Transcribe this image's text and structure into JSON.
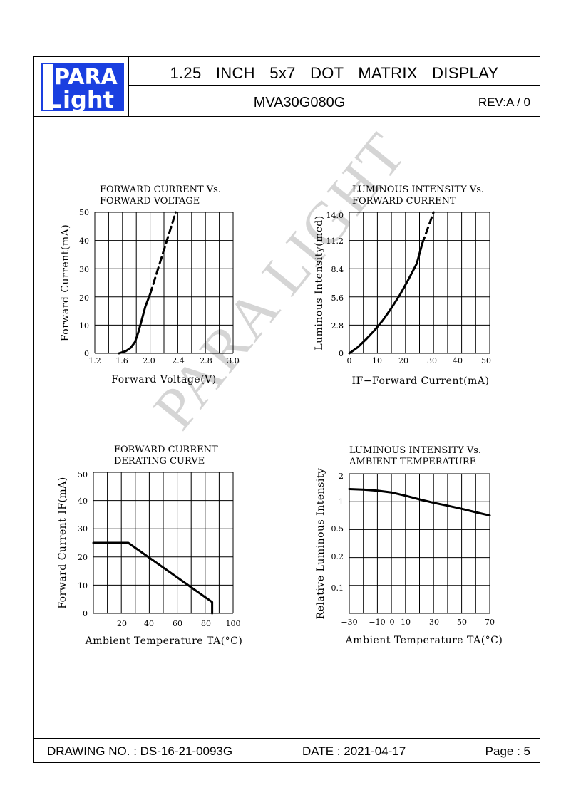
{
  "header": {
    "logo_top": "PARA",
    "logo_bottom": "ight",
    "logo_letter": "L",
    "title": "1.25 INCH 5x7 DOT MATRIX DISPLAY",
    "part_number": "MVA30G080G",
    "revision": "REV:A / 0"
  },
  "footer": {
    "drawing_no": "DRAWING NO. : DS-16-21-0093G",
    "date": "DATE : 2021-04-17",
    "page": "Page : 5"
  },
  "watermark": "PARA LIGHT",
  "colors": {
    "logo_blue": "#1a3fe0",
    "ink": "#000000"
  },
  "chart_data": [
    {
      "type": "line",
      "title": [
        "FORWARD CURRENT Vs.",
        "FORWARD VOLTAGE"
      ],
      "xlabel": "Forward Voltage(V)",
      "ylabel": "Forward Current(mA)",
      "xticks": [
        "1.2",
        "1.6",
        "2.0",
        "2.4",
        "2.8",
        "3.0"
      ],
      "yticks": [
        "0",
        "10",
        "20",
        "30",
        "40",
        "50"
      ],
      "xlim": [
        1.2,
        3.2
      ],
      "ylim": [
        0,
        50
      ],
      "grid": true,
      "series": [
        {
          "style": "solid",
          "x": [
            1.55,
            1.65,
            1.72,
            1.78,
            1.83,
            1.88,
            1.93,
            2.0
          ],
          "y": [
            0,
            0.8,
            2,
            4,
            7.5,
            12,
            16.5,
            21
          ]
        },
        {
          "style": "dashed",
          "x": [
            2.0,
            2.37
          ],
          "y": [
            21,
            50
          ]
        }
      ]
    },
    {
      "type": "line",
      "title": [
        "LUMINOUS INTENSITY Vs.",
        "FORWARD CURRENT"
      ],
      "xlabel": "IF−Forward Current(mA)",
      "ylabel": "Luminous Intensity(mcd)",
      "xticks": [
        "0",
        "10",
        "20",
        "30",
        "40",
        "50"
      ],
      "yticks": [
        "0",
        "2.8",
        "5.6",
        "8.4",
        "11.2",
        "14.0"
      ],
      "xlim": [
        0,
        50
      ],
      "ylim": [
        0,
        14
      ],
      "grid": true,
      "series": [
        {
          "style": "solid",
          "x": [
            0,
            3,
            6,
            9,
            12,
            15,
            18,
            21,
            24,
            26
          ],
          "y": [
            0,
            0.6,
            1.4,
            2.3,
            3.3,
            4.5,
            5.8,
            7.3,
            8.9,
            10.9
          ]
        },
        {
          "style": "dashed",
          "x": [
            26,
            30
          ],
          "y": [
            10.9,
            14
          ]
        }
      ]
    },
    {
      "type": "line",
      "title": [
        "FORWARD CURRENT",
        "DERATING CURVE"
      ],
      "xlabel": "Ambient Temperature TA(°C)",
      "ylabel": "Forward Current IF(mA)",
      "xticks": [
        "20",
        "40",
        "60",
        "80",
        "100"
      ],
      "yticks": [
        "0",
        "10",
        "20",
        "30",
        "40",
        "50"
      ],
      "xlim": [
        0,
        100
      ],
      "ylim": [
        0,
        50
      ],
      "grid": true,
      "series": [
        {
          "style": "solid",
          "x": [
            0,
            25,
            85,
            85
          ],
          "y": [
            25,
            25,
            4,
            0
          ]
        }
      ]
    },
    {
      "type": "line",
      "title": [
        "LUMINOUS INTENSITY Vs.",
        "AMBIENT TEMPERATURE"
      ],
      "xlabel": "Ambient Temperature TA(°C)",
      "ylabel": "Relative Luminous Intensity",
      "xticks": [
        "−30",
        "−10",
        "0",
        "10",
        "30",
        "50",
        "70"
      ],
      "yticks": [
        "0.1",
        "0.2",
        "0.5",
        "1",
        "2"
      ],
      "xlim": [
        -30,
        70
      ],
      "ylim": [
        0,
        2
      ],
      "grid": true,
      "series": [
        {
          "style": "solid",
          "x": [
            -30,
            -20,
            -10,
            0,
            10,
            20,
            30,
            40,
            50,
            60,
            70
          ],
          "y": [
            1.4,
            1.38,
            1.34,
            1.28,
            1.17,
            1.06,
            0.97,
            0.9,
            0.83,
            0.76,
            0.7
          ]
        }
      ]
    }
  ]
}
